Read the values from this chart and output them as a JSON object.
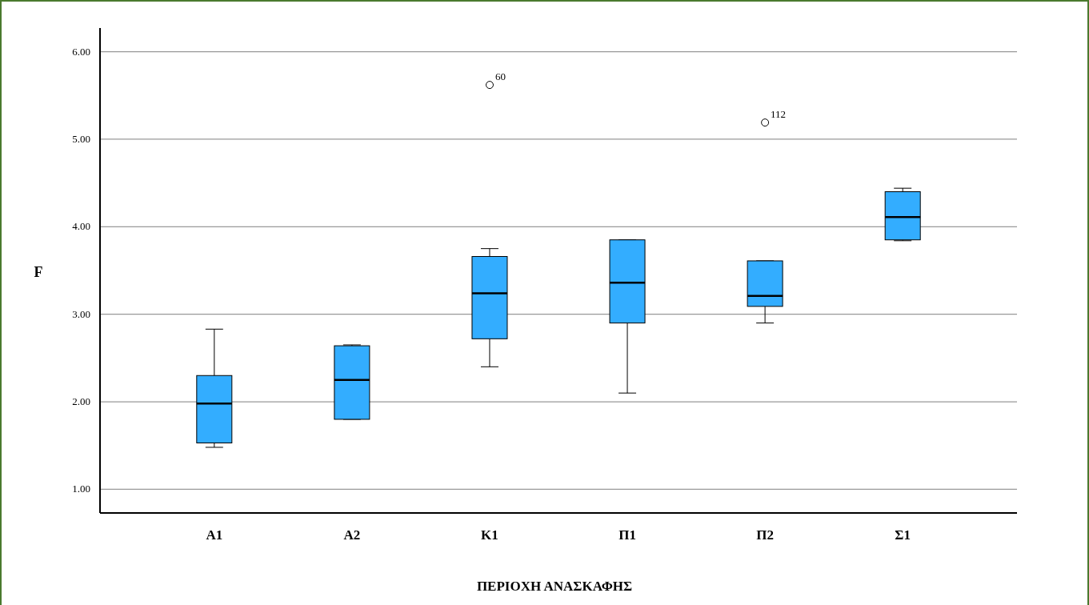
{
  "chart_data": {
    "type": "box",
    "xlabel": "ΠΕΡΙΟΧΗ ΑΝΑΣΚΑΦΗΣ",
    "ylabel": "F",
    "categories": [
      "Α1",
      "Α2",
      "Κ1",
      "Π1",
      "Π2",
      "Σ1"
    ],
    "color": "#33adff",
    "boxes": [
      {
        "low": 1.48,
        "q1": 1.53,
        "median": 1.98,
        "q3": 2.3,
        "high": 2.83
      },
      {
        "low": 1.8,
        "q1": 1.8,
        "median": 2.25,
        "q3": 2.64,
        "high": 2.65
      },
      {
        "low": 2.4,
        "q1": 2.72,
        "median": 3.24,
        "q3": 3.66,
        "high": 3.75,
        "outliers": [
          5.62
        ]
      },
      {
        "low": 2.1,
        "q1": 2.9,
        "median": 3.36,
        "q3": 3.85,
        "high": 3.85
      },
      {
        "low": 2.9,
        "q1": 3.09,
        "median": 3.21,
        "q3": 3.61,
        "high": 3.61,
        "outliers": [
          5.19
        ]
      },
      {
        "low": 3.84,
        "q1": 3.85,
        "median": 4.11,
        "q3": 4.4,
        "high": 4.44
      }
    ],
    "annotations": [
      "60",
      "112"
    ],
    "ylim": [
      0.73,
      6.27
    ],
    "yticks": [
      {
        "value": 1,
        "label": "1.00"
      },
      {
        "value": 2,
        "label": "2.00"
      },
      {
        "value": 3,
        "label": "3.00"
      },
      {
        "value": 4,
        "label": "4.00"
      },
      {
        "value": 5,
        "label": "5.00"
      },
      {
        "value": 6,
        "label": "6.00"
      }
    ],
    "grid": "y"
  }
}
